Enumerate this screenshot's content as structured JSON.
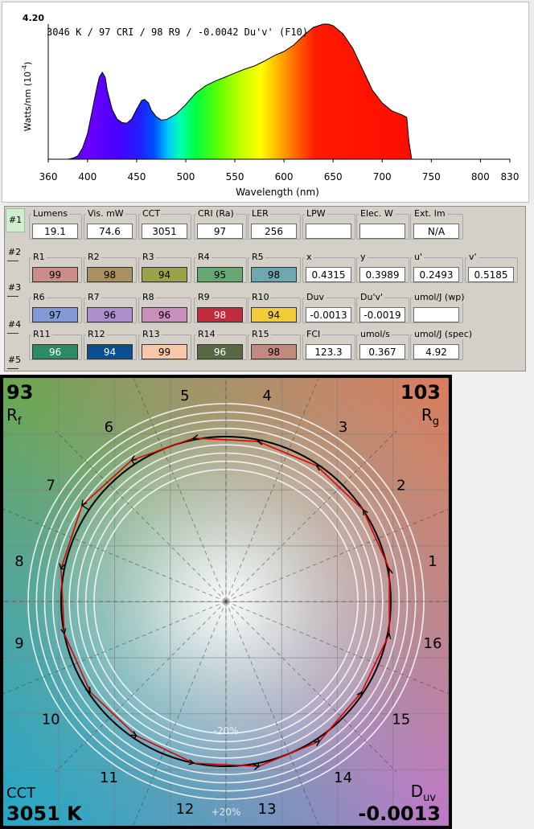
{
  "spectrum": {
    "summary": "3046 K / 97 CRI / 98 R9 / -0.0042 Du'v' (F10)",
    "y_label": "Watts/nm (10",
    "y_label_exp": "-4",
    "y_label_close": ")",
    "y_max_label": "4.20",
    "x_label": "Wavelength (nm)",
    "x_ticks": [
      "360",
      "400",
      "450",
      "500",
      "550",
      "600",
      "650",
      "700",
      "750",
      "800",
      "830"
    ]
  },
  "chart_data": {
    "type": "area",
    "title": "3046 K / 97 CRI / 98 R9 / -0.0042 Du'v' (F10)",
    "xlabel": "Wavelength (nm)",
    "ylabel": "Watts/nm (10^-4)",
    "xlim": [
      360,
      830
    ],
    "ylim": [
      0,
      4.2
    ],
    "series": [
      {
        "x": [
          380,
          385,
          390,
          395,
          400,
          405,
          410,
          412,
          415,
          418,
          420,
          425,
          430,
          435,
          440,
          445,
          450,
          455,
          458,
          462,
          465,
          470,
          475,
          480,
          490,
          500,
          510,
          520,
          530,
          540,
          550,
          560,
          570,
          580,
          590,
          600,
          610,
          620,
          630,
          640,
          645,
          650,
          660,
          670,
          680,
          690,
          700,
          710,
          720,
          725,
          727,
          730
        ],
        "y": [
          0,
          0.03,
          0.1,
          0.35,
          0.8,
          1.55,
          2.3,
          2.55,
          2.7,
          2.55,
          2.15,
          1.55,
          1.25,
          1.14,
          1.12,
          1.25,
          1.55,
          1.82,
          1.86,
          1.75,
          1.52,
          1.32,
          1.22,
          1.23,
          1.4,
          1.7,
          2.05,
          2.28,
          2.43,
          2.55,
          2.68,
          2.8,
          2.9,
          3.05,
          3.22,
          3.35,
          3.55,
          3.85,
          4.1,
          4.2,
          4.2,
          4.15,
          3.9,
          3.45,
          2.8,
          2.15,
          1.75,
          1.5,
          1.38,
          1.3,
          0.6,
          0
        ]
      }
    ]
  },
  "slots": [
    "#1",
    "#2",
    "#3",
    "#4",
    "#5"
  ],
  "metrics": [
    [
      {
        "label": "Lumens",
        "value": "19.1"
      },
      {
        "label": "Vis. mW",
        "value": "74.6"
      },
      {
        "label": "CCT",
        "value": "3051"
      },
      {
        "label": "CRI (Ra)",
        "value": "97"
      },
      {
        "label": "LER",
        "value": "256"
      },
      {
        "label": "LPW",
        "value": ""
      },
      {
        "label": "Elec. W",
        "value": ""
      },
      {
        "label": "Ext. lm",
        "value": "N/A"
      }
    ],
    [
      {
        "label": "R1",
        "value": "99",
        "color": "#c98c87"
      },
      {
        "label": "R2",
        "value": "98",
        "color": "#a8915e"
      },
      {
        "label": "R3",
        "value": "94",
        "color": "#9aa347"
      },
      {
        "label": "R4",
        "value": "95",
        "color": "#67a771"
      },
      {
        "label": "R5",
        "value": "98",
        "color": "#6fa7b0"
      },
      {
        "label": "x",
        "value": "0.4315"
      },
      {
        "label": "y",
        "value": "0.3989"
      },
      {
        "label": "u'",
        "value": "0.2493"
      },
      {
        "label": "v'",
        "value": "0.5185"
      }
    ],
    [
      {
        "label": "R6",
        "value": "97",
        "color": "#8299d8"
      },
      {
        "label": "R7",
        "value": "96",
        "color": "#ac8fcf"
      },
      {
        "label": "R8",
        "value": "96",
        "color": "#c88fbd"
      },
      {
        "label": "R9",
        "value": "98",
        "color": "#c3293d"
      },
      {
        "label": "R10",
        "value": "94",
        "color": "#f2cd38"
      },
      {
        "label": "Duv",
        "value": "-0.0013"
      },
      {
        "label": "Du'v'",
        "value": "-0.0019"
      },
      {
        "label": "umol/J (wp)",
        "value": ""
      }
    ],
    [
      {
        "label": "R11",
        "value": "96",
        "color": "#2d8b64"
      },
      {
        "label": "R12",
        "value": "94",
        "color": "#0b4e91"
      },
      {
        "label": "R13",
        "value": "99",
        "color": "#f7c7a9"
      },
      {
        "label": "R14",
        "value": "96",
        "color": "#586942"
      },
      {
        "label": "R15",
        "value": "98",
        "color": "#c08b7c"
      },
      {
        "label": "FCI",
        "value": "123.3"
      },
      {
        "label": "umol/s",
        "value": "0.367"
      },
      {
        "label": "umol/J (spec)",
        "value": "4.92"
      }
    ]
  ],
  "cvg": {
    "rf_value": "93",
    "rf_label": "R",
    "rf_sub": "f",
    "rg_value": "103",
    "rg_label": "R",
    "rg_sub": "g",
    "cct_label": "CCT",
    "cct_value": "3051 K",
    "duv_label": "D",
    "duv_sub": "uv",
    "duv_value": "-0.0013",
    "minus20": "-20%",
    "plus20": "+20%",
    "hue_bins": [
      "1",
      "2",
      "3",
      "4",
      "5",
      "6",
      "7",
      "8",
      "9",
      "10",
      "11",
      "12",
      "13",
      "14",
      "15",
      "16"
    ],
    "test_radii": [
      1.01,
      1.0,
      0.99,
      0.99,
      1.01,
      1.03,
      1.05,
      1.02,
      1.0,
      0.99,
      0.98,
      1.0,
      1.02,
      1.02,
      0.99,
      1.01
    ]
  }
}
